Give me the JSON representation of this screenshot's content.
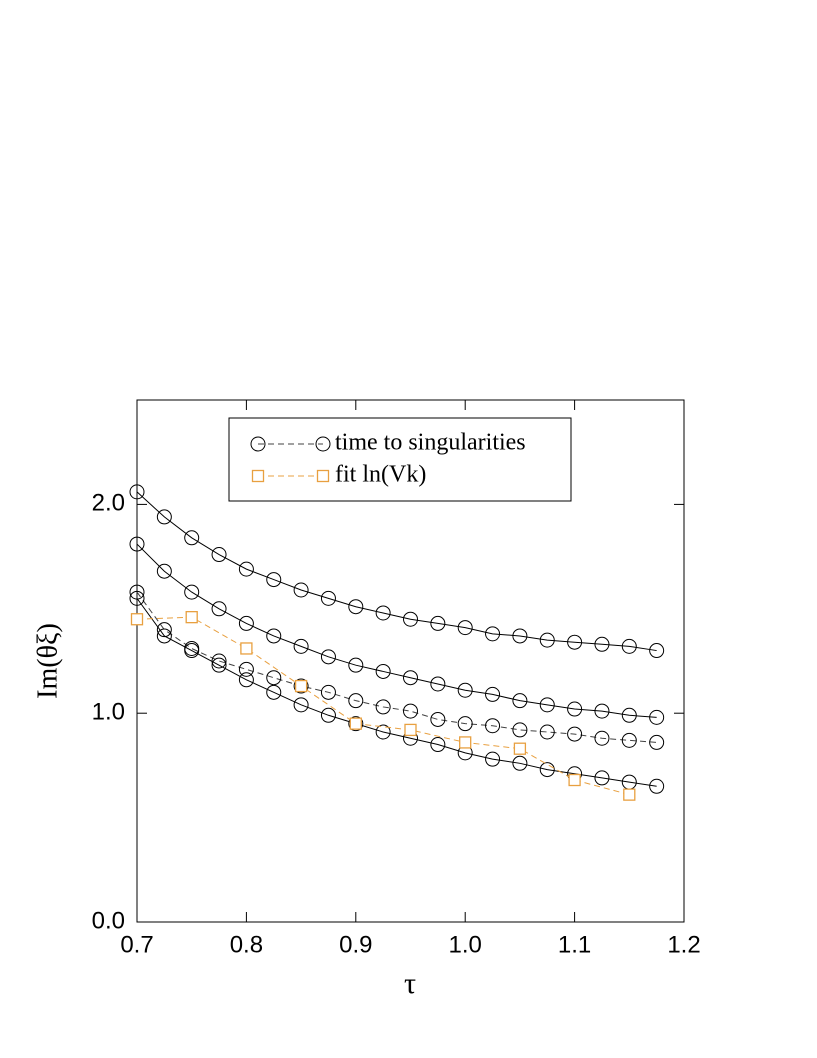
{
  "chart_data": {
    "type": "line",
    "xlabel": "τ",
    "ylabel": "Im(θξ)",
    "x": [
      0.7,
      0.725,
      0.75,
      0.775,
      0.8,
      0.825,
      0.85,
      0.875,
      0.9,
      0.925,
      0.95,
      0.975,
      1.0,
      1.025,
      1.05,
      1.075,
      1.1,
      1.125,
      1.15,
      1.175
    ],
    "series": [
      {
        "color": "#000000",
        "dash": false,
        "marker": "circle",
        "legend": false,
        "x": [
          0.7,
          0.725,
          0.75,
          0.775,
          0.8,
          0.825,
          0.85,
          0.875,
          0.9,
          0.925,
          0.95,
          0.975,
          1.0,
          1.025,
          1.05,
          1.075,
          1.1,
          1.125,
          1.15,
          1.175
        ],
        "values": [
          2.06,
          1.94,
          1.84,
          1.76,
          1.69,
          1.64,
          1.59,
          1.55,
          1.51,
          1.48,
          1.45,
          1.43,
          1.41,
          1.38,
          1.37,
          1.35,
          1.34,
          1.33,
          1.32,
          1.3
        ]
      },
      {
        "color": "#000000",
        "dash": false,
        "marker": "circle",
        "legend": false,
        "x": [
          0.7,
          0.725,
          0.75,
          0.775,
          0.8,
          0.825,
          0.85,
          0.875,
          0.9,
          0.925,
          0.95,
          0.975,
          1.0,
          1.025,
          1.05,
          1.075,
          1.1,
          1.125,
          1.15,
          1.175
        ],
        "values": [
          1.81,
          1.68,
          1.58,
          1.5,
          1.43,
          1.37,
          1.32,
          1.27,
          1.23,
          1.2,
          1.17,
          1.14,
          1.11,
          1.09,
          1.06,
          1.04,
          1.02,
          1.01,
          0.99,
          0.98
        ]
      },
      {
        "name": "time to singularities",
        "color": "#404040",
        "dash": true,
        "marker": "circle",
        "legend": true,
        "x": [
          0.7,
          0.725,
          0.75,
          0.775,
          0.8,
          0.825,
          0.85,
          0.875,
          0.9,
          0.925,
          0.95,
          0.975,
          1.0,
          1.025,
          1.05,
          1.075,
          1.1,
          1.125,
          1.15,
          1.175
        ],
        "values": [
          1.58,
          1.4,
          1.31,
          1.25,
          1.21,
          1.17,
          1.13,
          1.1,
          1.06,
          1.03,
          1.01,
          0.97,
          0.95,
          0.94,
          0.92,
          0.91,
          0.9,
          0.88,
          0.87,
          0.86
        ]
      },
      {
        "color": "#000000",
        "dash": false,
        "marker": "circle",
        "legend": false,
        "x": [
          0.7,
          0.725,
          0.75,
          0.775,
          0.8,
          0.825,
          0.85,
          0.875,
          0.9,
          0.925,
          0.95,
          0.975,
          1.0,
          1.025,
          1.05,
          1.075,
          1.1,
          1.125,
          1.15,
          1.175
        ],
        "values": [
          1.55,
          1.37,
          1.3,
          1.23,
          1.16,
          1.1,
          1.04,
          0.99,
          0.95,
          0.91,
          0.88,
          0.85,
          0.81,
          0.78,
          0.76,
          0.73,
          0.71,
          0.69,
          0.67,
          0.65
        ]
      },
      {
        "name": "fit ln(Vk)",
        "color": "#e8a040",
        "dash": true,
        "marker": "square",
        "legend": true,
        "x": [
          0.7,
          0.75,
          0.8,
          0.85,
          0.9,
          0.95,
          1.0,
          1.05,
          1.1,
          1.15
        ],
        "values": [
          1.45,
          1.46,
          1.31,
          1.13,
          0.95,
          0.92,
          0.86,
          0.83,
          0.68,
          0.61
        ]
      }
    ],
    "xlim": [
      0.7,
      1.2
    ],
    "xticks": [
      0.7,
      0.8,
      0.9,
      {
        "value": 1.0,
        "label": "1.0"
      },
      1.1,
      1.2
    ],
    "ylim": [
      0,
      2.5
    ],
    "yticks": [
      {
        "value": 0,
        "label": "0.0"
      },
      {
        "value": 1.0,
        "label": "1.0"
      },
      {
        "value": 2.0,
        "label": "2.0"
      }
    ],
    "grid": false
  }
}
